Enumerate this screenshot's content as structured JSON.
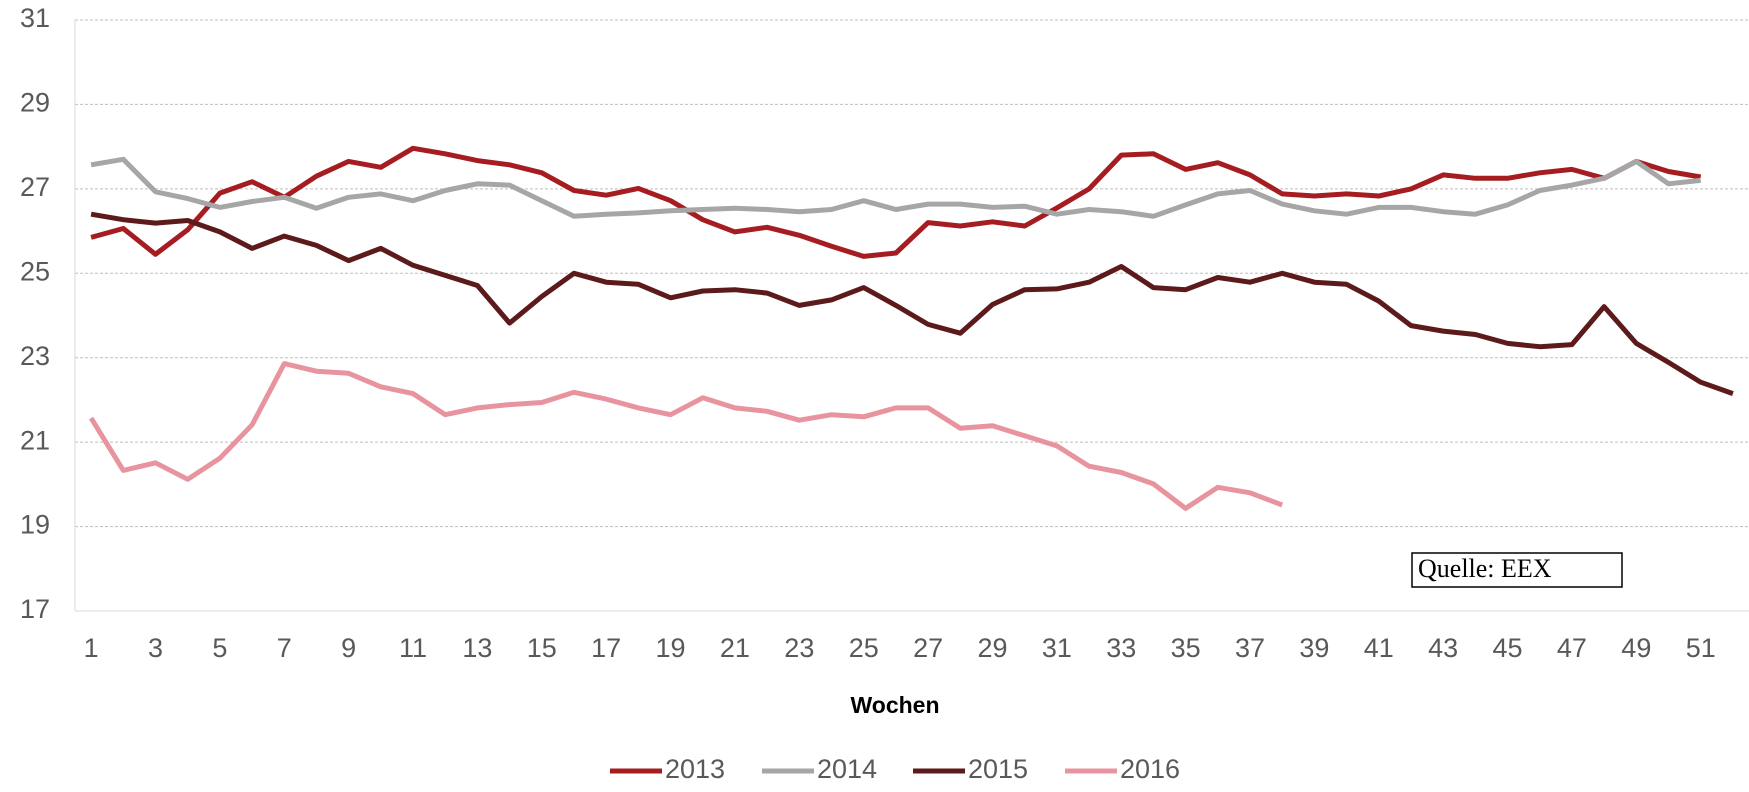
{
  "chart_data": {
    "type": "line",
    "x_label": "Wochen",
    "annotation": "Quelle: EEX",
    "x": [
      1,
      2,
      3,
      4,
      5,
      6,
      7,
      8,
      9,
      10,
      11,
      12,
      13,
      14,
      15,
      16,
      17,
      18,
      19,
      20,
      21,
      22,
      23,
      24,
      25,
      26,
      27,
      28,
      29,
      30,
      31,
      32,
      33,
      34,
      35,
      36,
      37,
      38,
      39,
      40,
      41,
      42,
      43,
      44,
      45,
      46,
      47,
      48,
      49,
      50,
      51,
      52
    ],
    "xlim": [
      0.5,
      52.5
    ],
    "xticks": [
      1,
      3,
      5,
      7,
      9,
      11,
      13,
      15,
      17,
      19,
      21,
      23,
      25,
      27,
      29,
      31,
      33,
      35,
      37,
      39,
      41,
      43,
      45,
      47,
      49,
      51
    ],
    "ylim": [
      17,
      31
    ],
    "yticks": [
      17,
      19,
      21,
      23,
      25,
      27,
      29,
      31
    ],
    "grid": true,
    "legend": "bottom",
    "series": [
      {
        "name": "2013",
        "color": "#a51d21",
        "values": [
          25.85,
          26.06,
          25.45,
          26.03,
          26.9,
          27.17,
          26.8,
          27.3,
          27.65,
          27.51,
          27.96,
          27.83,
          27.67,
          27.57,
          27.38,
          26.96,
          26.85,
          27.01,
          26.72,
          26.27,
          25.98,
          26.09,
          25.9,
          25.64,
          25.4,
          25.48,
          26.2,
          26.12,
          26.22,
          26.12,
          26.55,
          27.0,
          27.8,
          27.83,
          27.46,
          27.62,
          27.33,
          26.88,
          26.83,
          26.88,
          26.83,
          27.0,
          27.33,
          27.25,
          27.25,
          27.38,
          27.46,
          27.25,
          27.65,
          27.41,
          27.28,
          null
        ]
      },
      {
        "name": "2014",
        "color": "#a6a6a6",
        "values": [
          27.57,
          27.7,
          26.93,
          26.77,
          26.56,
          26.7,
          26.8,
          26.54,
          26.8,
          26.88,
          26.72,
          26.96,
          27.12,
          27.09,
          26.72,
          26.35,
          26.4,
          26.43,
          26.48,
          26.51,
          26.54,
          26.51,
          26.46,
          26.51,
          26.72,
          26.51,
          26.64,
          26.64,
          26.56,
          26.59,
          26.4,
          26.51,
          26.46,
          26.35,
          26.62,
          26.88,
          26.96,
          26.64,
          26.48,
          26.4,
          26.56,
          26.56,
          26.46,
          26.4,
          26.62,
          26.96,
          27.09,
          27.25,
          27.65,
          27.12,
          27.2,
          null
        ]
      },
      {
        "name": "2015",
        "color": "#5c1a1b",
        "values": [
          26.4,
          26.27,
          26.19,
          26.25,
          25.98,
          25.59,
          25.88,
          25.66,
          25.3,
          25.59,
          25.19,
          24.95,
          24.71,
          23.82,
          24.45,
          25.0,
          24.79,
          24.74,
          24.42,
          24.58,
          24.61,
          24.53,
          24.24,
          24.37,
          24.66,
          24.24,
          23.79,
          23.58,
          24.26,
          24.61,
          24.63,
          24.79,
          25.16,
          24.66,
          24.61,
          24.9,
          24.79,
          25.0,
          24.79,
          24.74,
          24.34,
          23.76,
          23.63,
          23.55,
          23.34,
          23.26,
          23.31,
          24.21,
          23.34,
          22.89,
          22.42,
          22.15
        ]
      },
      {
        "name": "2016",
        "color": "#e8949f",
        "values": [
          21.57,
          20.33,
          20.51,
          20.12,
          20.62,
          21.41,
          22.86,
          22.68,
          22.63,
          22.31,
          22.15,
          21.65,
          21.81,
          21.89,
          21.94,
          22.18,
          22.02,
          21.81,
          21.65,
          22.05,
          21.81,
          21.73,
          21.52,
          21.65,
          21.6,
          21.81,
          21.81,
          21.33,
          21.39,
          21.15,
          20.91,
          20.43,
          20.28,
          20.01,
          19.43,
          19.93,
          19.8,
          19.51,
          null,
          null,
          null,
          null,
          null,
          null,
          null,
          null,
          null,
          null,
          null,
          null,
          null,
          null
        ]
      }
    ]
  }
}
